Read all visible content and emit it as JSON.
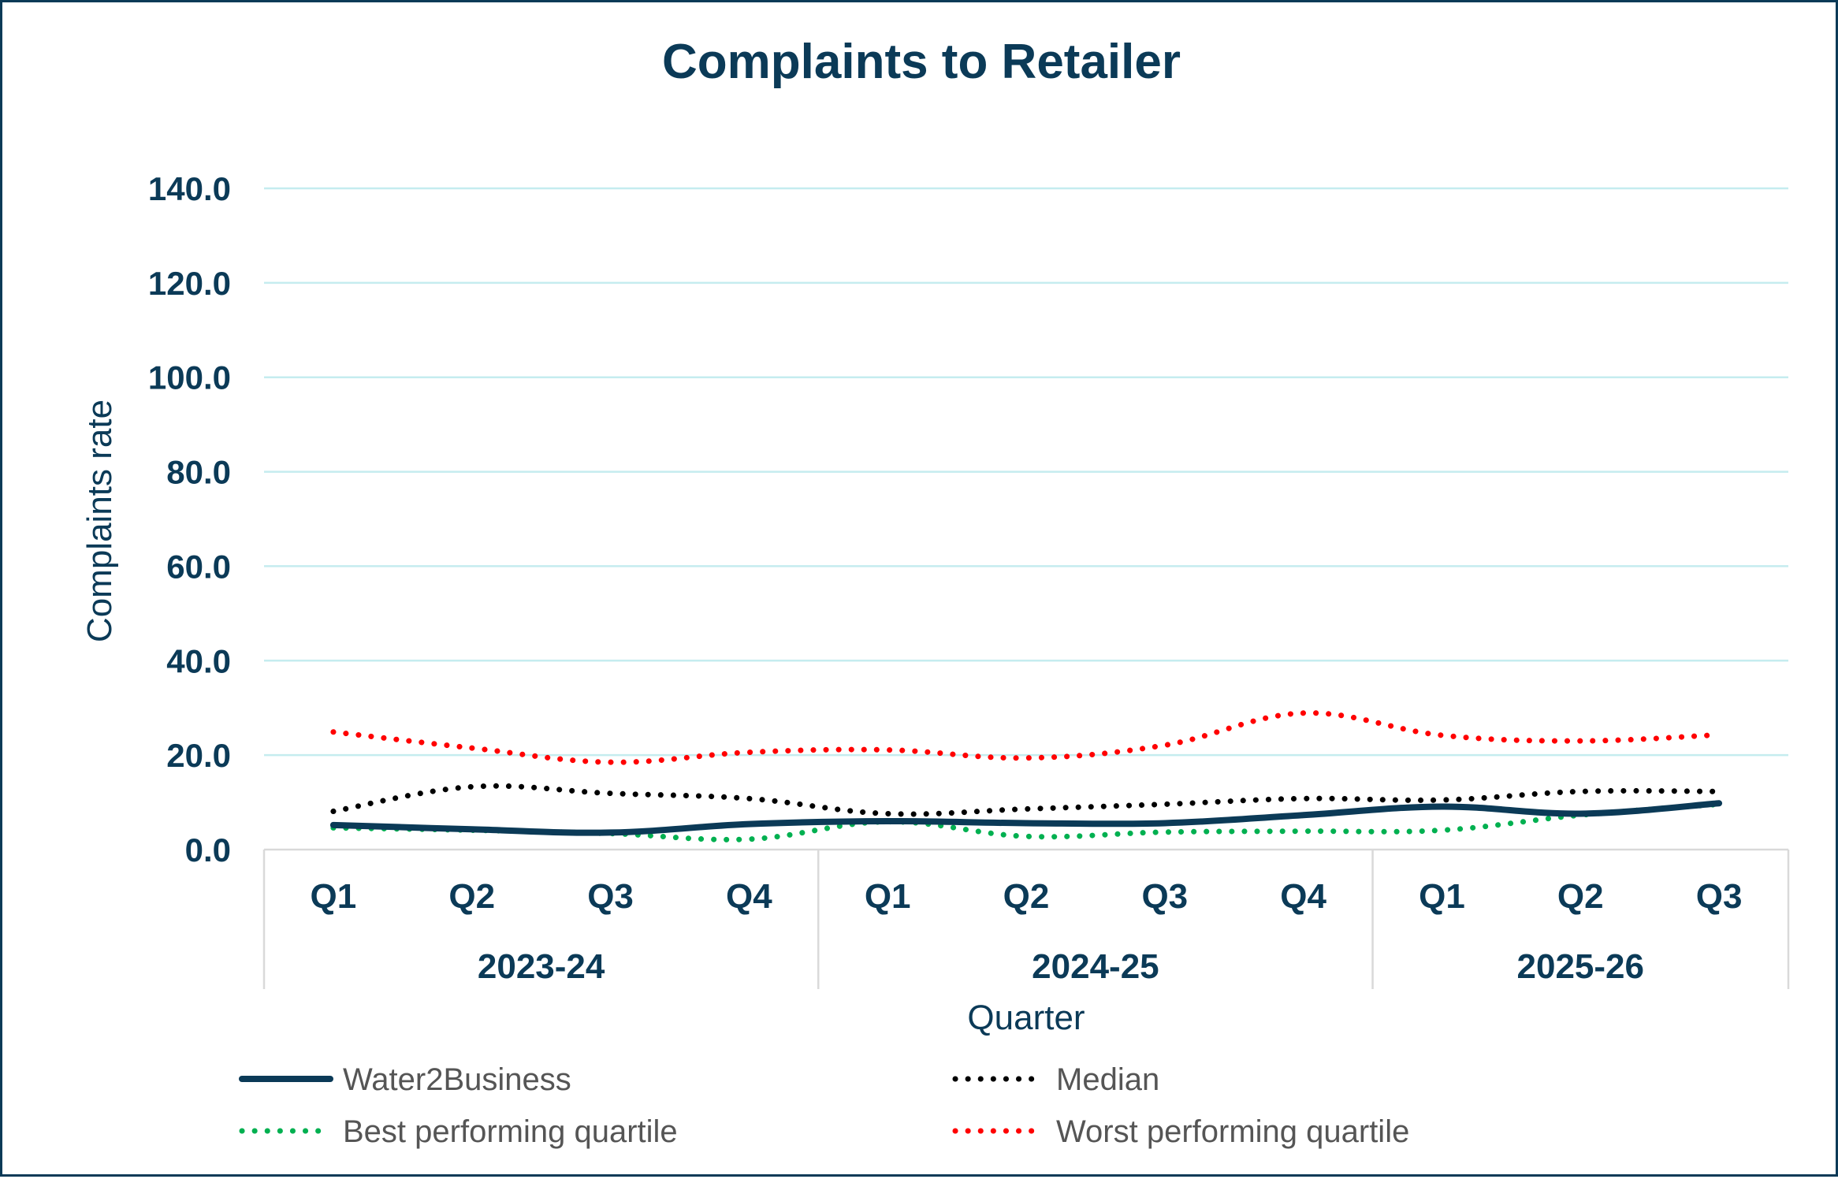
{
  "chart_data": {
    "type": "line",
    "title": "Complaints to Retailer",
    "xlabel": "Quarter",
    "ylabel": "Complaints rate",
    "ylim": [
      0,
      140
    ],
    "yticks": [
      "0.0",
      "20.0",
      "40.0",
      "60.0",
      "80.0",
      "100.0",
      "120.0",
      "140.0"
    ],
    "grid": true,
    "legend_position": "bottom",
    "categories": [
      "Q1",
      "Q2",
      "Q3",
      "Q4",
      "Q1",
      "Q2",
      "Q3",
      "Q4",
      "Q1",
      "Q2",
      "Q3"
    ],
    "groups": [
      {
        "label": "2023-24",
        "count": 4
      },
      {
        "label": "2024-25",
        "count": 4
      },
      {
        "label": "2025-26",
        "count": 3
      }
    ],
    "series": [
      {
        "name": "Water2Business",
        "style": "solid",
        "color": "#0b3a57",
        "values": [
          5.2,
          4.3,
          3.6,
          5.4,
          6.0,
          5.6,
          5.6,
          7.3,
          9.1,
          7.6,
          9.8
        ]
      },
      {
        "name": "Median",
        "style": "dotted",
        "color": "#000000",
        "values": [
          8.1,
          13.3,
          11.9,
          10.8,
          7.6,
          8.6,
          9.6,
          10.8,
          10.5,
          12.3,
          12.3
        ]
      },
      {
        "name": "Best performing quartile",
        "style": "dotted",
        "color": "#00b050",
        "values": [
          4.6,
          4.1,
          3.4,
          2.2,
          5.9,
          2.8,
          3.7,
          3.9,
          4.1,
          7.3,
          9.6
        ]
      },
      {
        "name": "Worst performing quartile",
        "style": "dotted",
        "color": "#ff0000",
        "values": [
          24.9,
          21.5,
          18.5,
          20.6,
          21.1,
          19.4,
          22.1,
          28.9,
          24.2,
          23.0,
          24.3
        ]
      }
    ]
  },
  "colors": {
    "title": "#0b3a57",
    "gridline": "#c5ecef",
    "axis": "#d9d9d9",
    "legend_text": "#555555"
  }
}
